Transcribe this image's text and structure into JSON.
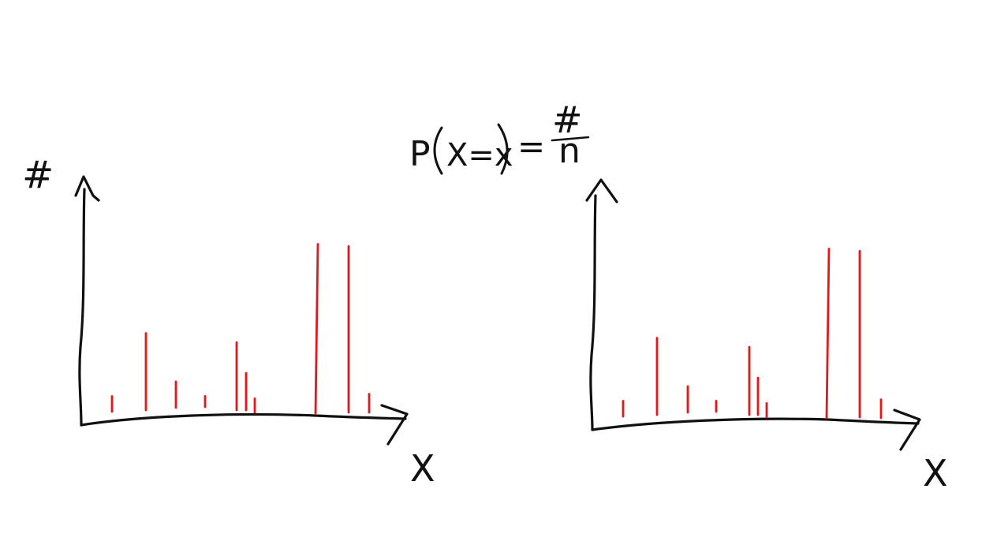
{
  "formula": {
    "prefix": "P",
    "event": "X=x",
    "equals": "=",
    "numerator": "#",
    "denominator": "n"
  },
  "colors": {
    "ink": "#111111",
    "stem": "#e8161b"
  },
  "chart_data": [
    {
      "type": "stem",
      "ylabel": "#",
      "xlabel": "X",
      "values": [
        0.05,
        0.25,
        0.085,
        0.035,
        0.22,
        0.12,
        0.045,
        0.55,
        0.54,
        0.06
      ]
    },
    {
      "type": "stem",
      "ylabel": "",
      "xlabel": "X",
      "values": [
        0.05,
        0.25,
        0.085,
        0.035,
        0.22,
        0.12,
        0.045,
        0.55,
        0.54,
        0.06
      ]
    }
  ]
}
